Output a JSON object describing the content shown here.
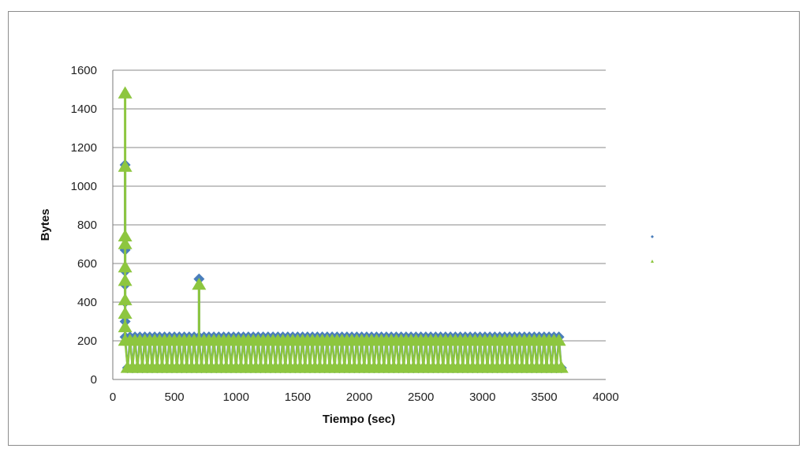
{
  "chart_data": {
    "type": "scatter",
    "title": "",
    "xlabel": "Tiempo (sec)",
    "ylabel": "Bytes",
    "xlim": [
      0,
      4000
    ],
    "ylim": [
      0,
      1600
    ],
    "x_ticks": [
      0,
      500,
      1000,
      1500,
      2000,
      2500,
      3000,
      3500,
      4000
    ],
    "y_ticks": [
      0,
      200,
      400,
      600,
      800,
      1000,
      1200,
      1400,
      1600
    ],
    "grid": "horizontal",
    "legend": "right",
    "series": [
      {
        "marker": "diamond",
        "color": "#4a7ebb",
        "spikes": [
          {
            "x": 100,
            "y": 1110
          },
          {
            "x": 100,
            "y": 670
          },
          {
            "x": 100,
            "y": 560
          },
          {
            "x": 100,
            "y": 490
          },
          {
            "x": 100,
            "y": 400
          },
          {
            "x": 100,
            "y": 300
          },
          {
            "x": 700,
            "y": 520
          }
        ],
        "band": {
          "x_start": 100,
          "x_end": 3650,
          "step": 40,
          "low": 60,
          "high": 220
        }
      },
      {
        "marker": "triangle",
        "color": "#8dc63f",
        "spikes": [
          {
            "x": 100,
            "y": 1480
          },
          {
            "x": 100,
            "y": 1100
          },
          {
            "x": 100,
            "y": 740
          },
          {
            "x": 100,
            "y": 700
          },
          {
            "x": 100,
            "y": 580
          },
          {
            "x": 100,
            "y": 510
          },
          {
            "x": 100,
            "y": 410
          },
          {
            "x": 100,
            "y": 340
          },
          {
            "x": 100,
            "y": 270
          },
          {
            "x": 700,
            "y": 490
          }
        ],
        "band": {
          "x_start": 100,
          "x_end": 3650,
          "step": 40,
          "low": 60,
          "high": 200
        }
      }
    ]
  }
}
